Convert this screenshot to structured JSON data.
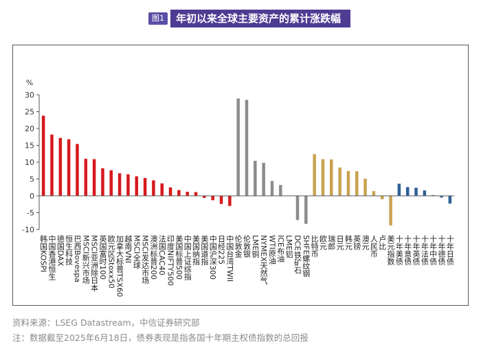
{
  "header": {
    "tag": "图1",
    "title": "年初以来全球主要资产的累计涨跌幅"
  },
  "colors": {
    "equity": "#d7191c",
    "commodity": "#8c8c8c",
    "currency": "#c9a24f",
    "bond": "#2f5f98"
  },
  "chart_data": {
    "type": "bar",
    "title": "年初以来全球主要资产的累计涨跌幅",
    "ylabel": "%",
    "ylim": [
      -10,
      30
    ],
    "yticks": [
      -10,
      -5,
      0,
      5,
      10,
      15,
      20,
      25,
      30
    ],
    "categories": [
      "韩国KOSPI",
      "中国香港恒生",
      "德国DAX",
      "恒生科技",
      "巴西Bovespa",
      "MSCI新兴市场",
      "MSCI亚洲除日本",
      "英国富时100",
      "欧元区Stoxx50",
      "加拿大标普TSX60",
      "越南VNI",
      "MSCI全球",
      "MSCI发达市场",
      "澳洲标普200",
      "法国CAC40",
      "印度NIFTY500",
      "美国标普500",
      "中国上证综指",
      "美国纳指",
      "美国道指",
      "中国沪深300",
      "日经225",
      "中国台湾TWII",
      "伦敦金",
      "伦敦银",
      "LME铜",
      "NYMEX天然气",
      "WTI原油",
      "ICE布油",
      "LME铝",
      "DCE铁矿石",
      "SHFE螺纹钢",
      "比特币",
      "欧元",
      "瑞郎",
      "日元",
      "韩元",
      "英镑",
      "澳元",
      "人民币",
      "卢比",
      "美元指数",
      "十年美债",
      "十年意债",
      "十年英债",
      "十年法债",
      "十年中债",
      "十年德债",
      "十年日债"
    ],
    "groups": [
      "equity",
      "equity",
      "equity",
      "equity",
      "equity",
      "equity",
      "equity",
      "equity",
      "equity",
      "equity",
      "equity",
      "equity",
      "equity",
      "equity",
      "equity",
      "equity",
      "equity",
      "equity",
      "equity",
      "equity",
      "equity",
      "equity",
      "equity",
      "commodity",
      "commodity",
      "commodity",
      "commodity",
      "commodity",
      "commodity",
      "commodity",
      "commodity",
      "commodity",
      "currency",
      "currency",
      "currency",
      "currency",
      "currency",
      "currency",
      "currency",
      "currency",
      "currency",
      "currency",
      "bond",
      "bond",
      "bond",
      "bond",
      "bond",
      "bond",
      "bond"
    ],
    "values": [
      23.8,
      18.2,
      17.2,
      16.8,
      15.4,
      11.0,
      10.9,
      8.2,
      7.6,
      6.7,
      6.4,
      5.8,
      5.3,
      4.6,
      3.7,
      2.5,
      1.7,
      1.2,
      1.1,
      -0.6,
      -1.3,
      -2.4,
      -3.0,
      28.9,
      28.5,
      10.4,
      9.8,
      4.4,
      3.2,
      0.0,
      -7.2,
      -8.3,
      12.4,
      10.9,
      10.8,
      8.4,
      7.4,
      7.3,
      5.1,
      1.4,
      -1.0,
      -8.8,
      3.6,
      2.6,
      2.4,
      1.6,
      0.2,
      -0.5,
      -2.3
    ]
  },
  "footnotes": {
    "source": "资料来源：LSEG Datastream，中信证券研究部",
    "note": "注：数据截至2025年6月18日，债券表现是指各国十年期主权债指数的总回报"
  }
}
